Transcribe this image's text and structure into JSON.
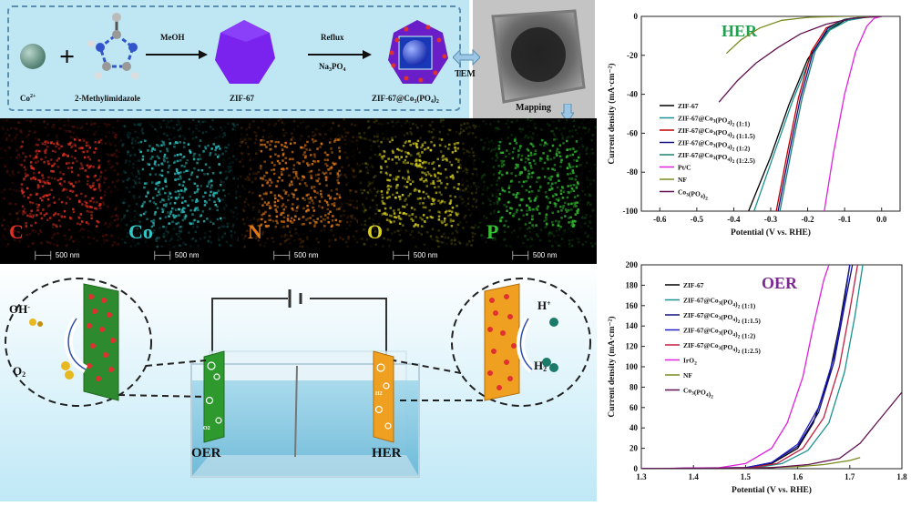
{
  "synthesis": {
    "co_label": "Co",
    "co_sup": "2+",
    "ligand_label": "2-Methylimidazole",
    "step1_reagent": "MeOH",
    "product1_label": "ZIF-67",
    "step2_reagent_top": "Reflux",
    "step2_reagent_bottom": "Na",
    "step2_reagent_bottom_sub": "3",
    "step2_reagent_bottom_tail": "PO",
    "step2_reagent_bottom_sub2": "4",
    "product2_label": "ZIF-67@Co",
    "product2_sub1": "3",
    "product2_mid": "(PO",
    "product2_sub2": "4",
    "product2_tail": ")",
    "product2_sub3": "2",
    "tem_label": "TEM",
    "mapping_label": "Mapping"
  },
  "mapping": {
    "elements": [
      {
        "letter": "C",
        "color": "#e03020"
      },
      {
        "letter": "Co",
        "color": "#30c8c8"
      },
      {
        "letter": "N",
        "color": "#e07818"
      },
      {
        "letter": "O",
        "color": "#d8d020"
      },
      {
        "letter": "P",
        "color": "#30c030"
      }
    ],
    "scale_label": "500 nm"
  },
  "cell": {
    "oh_label": "OH",
    "oh_sup": "-",
    "o2_label": "O",
    "o2_sub": "2",
    "h_label": "H",
    "h_sup": "+",
    "h2_label": "H",
    "h2_sub": "2",
    "left_electrode_label": "OER",
    "right_electrode_label": "HER",
    "left_gas": "O",
    "left_gas_sub": "2",
    "right_gas": "H",
    "right_gas_sub": "2"
  },
  "chart_data": [
    {
      "type": "line",
      "title": "HER",
      "xlabel": "Potential (V vs. RHE)",
      "ylabel": "Current density (mA·cm⁻²)",
      "xlim": [
        -0.65,
        0.05
      ],
      "ylim": [
        -100,
        0
      ],
      "xticks": [
        -0.6,
        -0.5,
        -0.4,
        -0.3,
        -0.2,
        -0.1,
        0.0
      ],
      "yticks": [
        0,
        -20,
        -40,
        -60,
        -80,
        -100
      ],
      "legend_position": "center-left",
      "series": [
        {
          "name": "ZIF-67",
          "color": "#000000",
          "x": [
            -0.36,
            -0.3,
            -0.25,
            -0.2,
            -0.15,
            -0.1,
            -0.05,
            0.0
          ],
          "y": [
            -100,
            -72,
            -45,
            -22,
            -8,
            -2,
            -0.5,
            0
          ]
        },
        {
          "name": "ZIF-67@Co3(PO4)2 (1:1)",
          "color": "#1a9090",
          "x": [
            -0.345,
            -0.29,
            -0.24,
            -0.19,
            -0.14,
            -0.09,
            -0.04,
            0.0
          ],
          "y": [
            -100,
            -70,
            -43,
            -20,
            -7,
            -2,
            -0.4,
            0
          ]
        },
        {
          "name": "ZIF-67@Co3(PO4)2 (1:1.5)",
          "color": "#c00000",
          "x": [
            -0.285,
            -0.255,
            -0.225,
            -0.19,
            -0.15,
            -0.1,
            -0.05,
            0.0
          ],
          "y": [
            -100,
            -70,
            -42,
            -18,
            -6,
            -1.5,
            -0.3,
            0
          ]
        },
        {
          "name": "ZIF-67@Co3(PO4)2 (1:2)",
          "color": "#101080",
          "x": [
            -0.28,
            -0.25,
            -0.22,
            -0.185,
            -0.145,
            -0.1,
            -0.05,
            0.0
          ],
          "y": [
            -100,
            -70,
            -42,
            -18,
            -6,
            -1.5,
            -0.3,
            0
          ]
        },
        {
          "name": "ZIF-67@Co3(PO4)2 (1:2.5)",
          "color": "#1a8070",
          "x": [
            -0.275,
            -0.245,
            -0.215,
            -0.18,
            -0.14,
            -0.1,
            -0.05,
            0.0
          ],
          "y": [
            -100,
            -70,
            -42,
            -18,
            -6,
            -1.5,
            -0.3,
            0
          ]
        },
        {
          "name": "Pt/C",
          "color": "#e020e0",
          "x": [
            -0.155,
            -0.13,
            -0.1,
            -0.07,
            -0.04,
            -0.02,
            0.0
          ],
          "y": [
            -100,
            -70,
            -40,
            -18,
            -5,
            -1,
            0
          ]
        },
        {
          "name": "NF",
          "color": "#7a8a20",
          "x": [
            -0.42,
            -0.38,
            -0.33,
            -0.27,
            -0.2,
            -0.1,
            0.0
          ],
          "y": [
            -19,
            -12,
            -6,
            -2,
            -0.5,
            0,
            0
          ]
        },
        {
          "name": "Co3(PO4)2",
          "color": "#601050",
          "x": [
            -0.44,
            -0.39,
            -0.34,
            -0.28,
            -0.22,
            -0.15,
            -0.08,
            0.0
          ],
          "y": [
            -44,
            -33,
            -24,
            -16,
            -9,
            -4,
            -1,
            0
          ]
        }
      ]
    },
    {
      "type": "line",
      "title": "OER",
      "xlabel": "Potential (V vs. RHE)",
      "ylabel": "Current density (mA·cm⁻²)",
      "xlim": [
        1.3,
        1.8
      ],
      "ylim": [
        0,
        200
      ],
      "xticks": [
        1.3,
        1.4,
        1.5,
        1.6,
        1.7,
        1.8
      ],
      "yticks": [
        0,
        20,
        40,
        60,
        80,
        100,
        120,
        140,
        160,
        180,
        200
      ],
      "legend_position": "top-left",
      "series": [
        {
          "name": "ZIF-67",
          "color": "#000000",
          "x": [
            1.3,
            1.5,
            1.55,
            1.6,
            1.63,
            1.66,
            1.68,
            1.7
          ],
          "y": [
            0,
            1,
            5,
            20,
            45,
            90,
            140,
            200
          ]
        },
        {
          "name": "ZIF-67@Co3(PO4)2 (1:1)",
          "color": "#1a9090",
          "x": [
            1.3,
            1.52,
            1.57,
            1.62,
            1.66,
            1.69,
            1.71,
            1.725
          ],
          "y": [
            0,
            1,
            5,
            18,
            45,
            95,
            150,
            200
          ]
        },
        {
          "name": "ZIF-67@Co3(PO4)2 (1:1.5)",
          "color": "#101080",
          "x": [
            1.3,
            1.5,
            1.55,
            1.6,
            1.64,
            1.67,
            1.69,
            1.705
          ],
          "y": [
            0,
            1,
            6,
            22,
            55,
            105,
            160,
            200
          ]
        },
        {
          "name": "ZIF-67@Co3(PO4)2 (1:2)",
          "color": "#2020c0",
          "x": [
            1.3,
            1.5,
            1.55,
            1.6,
            1.64,
            1.67,
            1.69,
            1.7
          ],
          "y": [
            0,
            1,
            6,
            24,
            60,
            110,
            165,
            200
          ]
        },
        {
          "name": "ZIF-67@Co3(PO4)2 (1:2.5)",
          "color": "#c02040",
          "x": [
            1.3,
            1.51,
            1.56,
            1.61,
            1.65,
            1.68,
            1.7,
            1.715
          ],
          "y": [
            0,
            1,
            5,
            20,
            50,
            100,
            155,
            200
          ]
        },
        {
          "name": "IrO2",
          "color": "#e020e0",
          "x": [
            1.3,
            1.45,
            1.5,
            1.55,
            1.58,
            1.61,
            1.63,
            1.65,
            1.66
          ],
          "y": [
            0,
            1,
            5,
            20,
            45,
            90,
            140,
            185,
            200
          ]
        },
        {
          "name": "NF",
          "color": "#7a8a20",
          "x": [
            1.3,
            1.5,
            1.6,
            1.65,
            1.7,
            1.72
          ],
          "y": [
            0,
            0.5,
            2,
            4,
            8,
            11
          ]
        },
        {
          "name": "Co3(PO4)2",
          "color": "#601050",
          "x": [
            1.3,
            1.55,
            1.62,
            1.68,
            1.72,
            1.76,
            1.8
          ],
          "y": [
            0,
            1,
            4,
            10,
            25,
            50,
            75
          ]
        }
      ]
    }
  ]
}
